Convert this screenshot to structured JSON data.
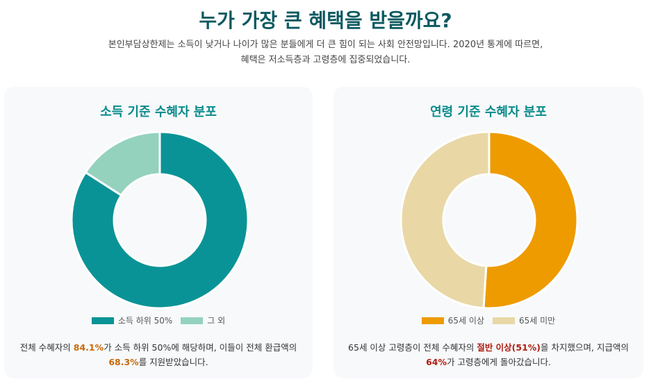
{
  "header": {
    "title": "누가 가장 큰 혜택을 받을까요?",
    "desc_line1": "본인부담상한제는 소득이 낮거나 나이가 많은 분들에게 더 큰 힘이 되는 사회 안전망입니다. 2020년 통계에 따르면,",
    "desc_line2": "혜택은 저소득층과 고령층에 집중되었습니다."
  },
  "colors": {
    "teal": "#0a9396",
    "mint": "#94d2bd",
    "orange": "#ee9b00",
    "sand": "#e9d8a6",
    "highlight_left": "#c8690a",
    "highlight_right": "#ae2012"
  },
  "chart_data": [
    {
      "type": "pie",
      "title": "소득 기준 수혜자 분포",
      "categories": [
        "소득 하위 50%",
        "그 외"
      ],
      "values": [
        84.1,
        15.9
      ],
      "legend": "bottom",
      "colors": [
        "#0a9396",
        "#94d2bd"
      ]
    },
    {
      "type": "pie",
      "title": "연령 기준 수혜자 분포",
      "categories": [
        "65세 이상",
        "65세 미만"
      ],
      "values": [
        51,
        49
      ],
      "legend": "bottom",
      "colors": [
        "#ee9b00",
        "#e9d8a6"
      ]
    }
  ],
  "notes": {
    "left": {
      "p1": "전체 수혜자의 ",
      "h1": "84.1%",
      "p2": "가 소득 하위 50%에 해당하며, 이들이 전체 환급액의",
      "h2": "68.3%",
      "p3": "를 지원받았습니다."
    },
    "right": {
      "p1": "65세 이상 고령층이 전체 수혜자의 ",
      "h1": "절반 이상(51%)",
      "p2": "을 차지했으며, 지급액의",
      "h2": "64%",
      "p3": "가 고령층에게 돌아갔습니다."
    }
  }
}
